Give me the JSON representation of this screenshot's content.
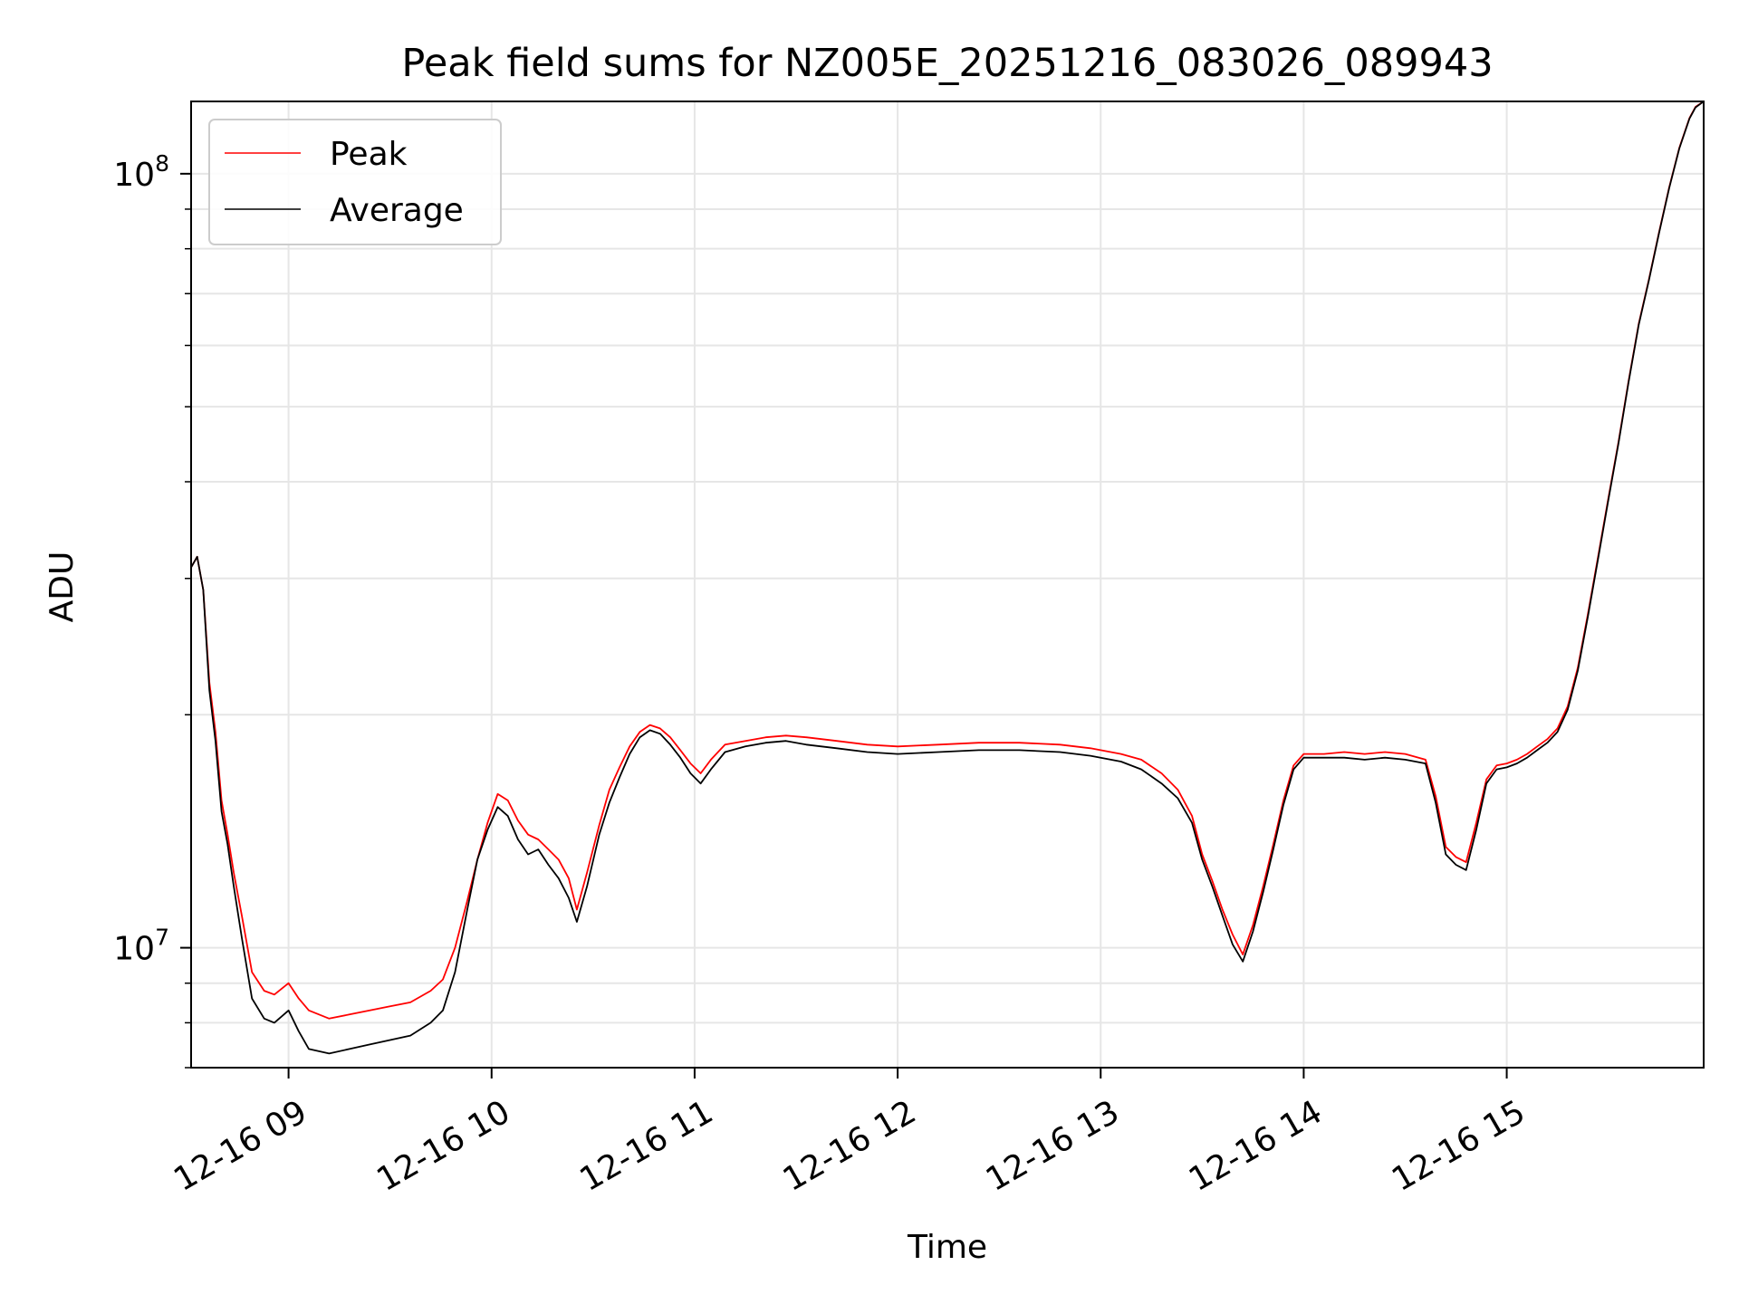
{
  "chart_data": {
    "type": "line",
    "title": "Peak field sums for NZ005E_20251216_083026_089943",
    "xlabel": "Time",
    "ylabel": "ADU",
    "yscale": "log",
    "grid": true,
    "xlim": [
      8.52,
      15.97
    ],
    "ylim": [
      7000000,
      124000000
    ],
    "x_unit": "hour of day 2025-12-16",
    "x_ticks": [
      {
        "value": 9,
        "label": "12-16 09"
      },
      {
        "value": 10,
        "label": "12-16 10"
      },
      {
        "value": 11,
        "label": "12-16 11"
      },
      {
        "value": 12,
        "label": "12-16 12"
      },
      {
        "value": 13,
        "label": "12-16 13"
      },
      {
        "value": 14,
        "label": "12-16 14"
      },
      {
        "value": 15,
        "label": "12-16 15"
      }
    ],
    "y_ticks": [
      {
        "value": 10000000,
        "base": "10",
        "exp": "7"
      },
      {
        "value": 100000000,
        "base": "10",
        "exp": "8"
      }
    ],
    "legend": {
      "position": "top-left"
    },
    "series": [
      {
        "name": "Peak",
        "color": "#ff0000",
        "x": [
          8.52,
          8.55,
          8.58,
          8.61,
          8.64,
          8.67,
          8.7,
          8.73,
          8.77,
          8.82,
          8.88,
          8.93,
          9.0,
          9.05,
          9.1,
          9.2,
          9.3,
          9.4,
          9.5,
          9.6,
          9.7,
          9.76,
          9.82,
          9.88,
          9.93,
          9.98,
          10.03,
          10.08,
          10.13,
          10.18,
          10.23,
          10.28,
          10.33,
          10.38,
          10.42,
          10.47,
          10.53,
          10.58,
          10.63,
          10.68,
          10.73,
          10.78,
          10.83,
          10.88,
          10.93,
          10.98,
          11.03,
          11.08,
          11.15,
          11.25,
          11.35,
          11.45,
          11.55,
          11.7,
          11.85,
          12.0,
          12.2,
          12.4,
          12.6,
          12.8,
          12.95,
          13.1,
          13.2,
          13.3,
          13.38,
          13.45,
          13.5,
          13.55,
          13.6,
          13.65,
          13.7,
          13.75,
          13.8,
          13.85,
          13.9,
          13.95,
          14.0,
          14.1,
          14.2,
          14.3,
          14.4,
          14.5,
          14.6,
          14.65,
          14.7,
          14.75,
          14.8,
          14.85,
          14.9,
          14.95,
          15.0,
          15.05,
          15.1,
          15.15,
          15.2,
          15.25,
          15.3,
          15.35,
          15.4,
          15.45,
          15.5,
          15.55,
          15.6,
          15.65,
          15.7,
          15.75,
          15.8,
          15.85,
          15.9,
          15.93,
          15.97
        ],
        "y": [
          31000000,
          32000000,
          29000000,
          22000000,
          19000000,
          15500000,
          14000000,
          12500000,
          11000000,
          9300000,
          8800000,
          8700000,
          9000000,
          8600000,
          8300000,
          8100000,
          8200000,
          8300000,
          8400000,
          8500000,
          8800000,
          9100000,
          10000000,
          11500000,
          13000000,
          14500000,
          15800000,
          15500000,
          14600000,
          14000000,
          13800000,
          13400000,
          13000000,
          12300000,
          11200000,
          12500000,
          14400000,
          16000000,
          17100000,
          18200000,
          19000000,
          19400000,
          19200000,
          18700000,
          18000000,
          17300000,
          16800000,
          17500000,
          18300000,
          18500000,
          18700000,
          18800000,
          18700000,
          18500000,
          18300000,
          18200000,
          18300000,
          18400000,
          18400000,
          18300000,
          18100000,
          17800000,
          17500000,
          16800000,
          16000000,
          14800000,
          13200000,
          12200000,
          11200000,
          10400000,
          9800000,
          10700000,
          12000000,
          13600000,
          15500000,
          17200000,
          17800000,
          17800000,
          17900000,
          17800000,
          17900000,
          17800000,
          17500000,
          15700000,
          13500000,
          13100000,
          12900000,
          14500000,
          16500000,
          17200000,
          17300000,
          17500000,
          17800000,
          18200000,
          18600000,
          19200000,
          20500000,
          23000000,
          27000000,
          32000000,
          38000000,
          45000000,
          54000000,
          64000000,
          73000000,
          84000000,
          96000000,
          108000000,
          118000000,
          122000000,
          124000000
        ]
      },
      {
        "name": "Average",
        "color": "#000000",
        "x": [
          8.52,
          8.55,
          8.58,
          8.61,
          8.64,
          8.67,
          8.7,
          8.73,
          8.77,
          8.82,
          8.88,
          8.93,
          9.0,
          9.05,
          9.1,
          9.2,
          9.3,
          9.4,
          9.5,
          9.6,
          9.7,
          9.76,
          9.82,
          9.88,
          9.93,
          9.98,
          10.03,
          10.08,
          10.13,
          10.18,
          10.23,
          10.28,
          10.33,
          10.38,
          10.42,
          10.47,
          10.53,
          10.58,
          10.63,
          10.68,
          10.73,
          10.78,
          10.83,
          10.88,
          10.93,
          10.98,
          11.03,
          11.08,
          11.15,
          11.25,
          11.35,
          11.45,
          11.55,
          11.7,
          11.85,
          12.0,
          12.2,
          12.4,
          12.6,
          12.8,
          12.95,
          13.1,
          13.2,
          13.3,
          13.38,
          13.45,
          13.5,
          13.55,
          13.6,
          13.65,
          13.7,
          13.75,
          13.8,
          13.85,
          13.9,
          13.95,
          14.0,
          14.1,
          14.2,
          14.3,
          14.4,
          14.5,
          14.6,
          14.65,
          14.7,
          14.75,
          14.8,
          14.85,
          14.9,
          14.95,
          15.0,
          15.05,
          15.1,
          15.15,
          15.2,
          15.25,
          15.3,
          15.35,
          15.4,
          15.45,
          15.5,
          15.55,
          15.6,
          15.65,
          15.7,
          15.75,
          15.8,
          15.85,
          15.9,
          15.93,
          15.97
        ],
        "y": [
          31000000,
          32000000,
          29000000,
          21500000,
          18500000,
          15000000,
          13600000,
          12000000,
          10300000,
          8600000,
          8100000,
          8000000,
          8300000,
          7800000,
          7400000,
          7300000,
          7400000,
          7500000,
          7600000,
          7700000,
          8000000,
          8300000,
          9300000,
          11200000,
          13000000,
          14200000,
          15200000,
          14800000,
          13800000,
          13200000,
          13400000,
          12800000,
          12300000,
          11600000,
          10800000,
          12000000,
          14000000,
          15400000,
          16600000,
          17800000,
          18700000,
          19100000,
          18900000,
          18300000,
          17600000,
          16800000,
          16300000,
          17000000,
          17900000,
          18200000,
          18400000,
          18500000,
          18300000,
          18100000,
          17900000,
          17800000,
          17900000,
          18000000,
          18000000,
          17900000,
          17700000,
          17400000,
          17000000,
          16300000,
          15600000,
          14500000,
          13000000,
          12000000,
          11000000,
          10100000,
          9600000,
          10500000,
          11800000,
          13400000,
          15300000,
          17000000,
          17600000,
          17600000,
          17600000,
          17500000,
          17600000,
          17500000,
          17300000,
          15400000,
          13200000,
          12800000,
          12600000,
          14200000,
          16300000,
          17000000,
          17100000,
          17300000,
          17600000,
          18000000,
          18400000,
          19000000,
          20300000,
          22800000,
          26800000,
          31800000,
          37800000,
          44800000,
          53800000,
          63800000,
          72800000,
          83800000,
          95800000,
          107800000,
          117800000,
          121800000,
          124000000
        ]
      }
    ]
  }
}
